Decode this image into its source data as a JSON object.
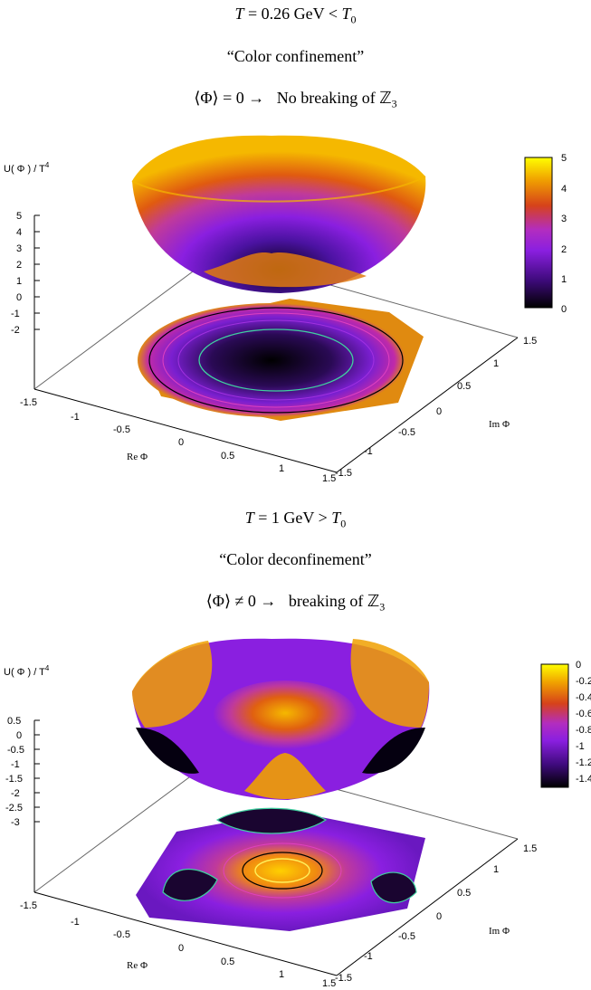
{
  "panels": [
    {
      "title": {
        "prefix": "T",
        "mid": " = 0.26 GeV < ",
        "suffix": "T",
        "sub": "0"
      },
      "subtitle": "“Color confinement”",
      "statement": {
        "lhs": "⟨Φ⟩ = 0  →",
        "rhs": "No breaking of  ℤ",
        "rhs_sub": "3"
      },
      "zlabel": "U( Φ ) / T",
      "zlabel_sup": "4",
      "xlabel": "Re Φ",
      "ylabel": "Im Φ",
      "colorbar": {
        "ticks": [
          "5",
          "4",
          "3",
          "2",
          "1",
          "0"
        ],
        "range": [
          0,
          5
        ]
      }
    },
    {
      "title": {
        "prefix": "T",
        "mid": " = 1 GeV  > ",
        "suffix": "T",
        "sub": "0"
      },
      "subtitle": "“Color deconfinement”",
      "statement": {
        "lhs": "⟨Φ⟩ ≠ 0 →",
        "rhs": "breaking of  ℤ",
        "rhs_sub": "3"
      },
      "zlabel": "U( Φ ) / T",
      "zlabel_sup": "4",
      "xlabel": "Re Φ",
      "ylabel": "Im Φ",
      "colorbar": {
        "ticks": [
          "0",
          "-0.2",
          "-0.4",
          "-0.6",
          "-0.8",
          "-1",
          "-1.2",
          "-1.4"
        ],
        "range": [
          -1.5,
          0
        ]
      }
    }
  ],
  "chart_data": [
    {
      "type": "surface",
      "title": "T = 0.26 GeV < T0",
      "xlabel": "Re Φ",
      "ylabel": "Im Φ",
      "zlabel": "U( Φ ) / T4",
      "x_ticks": [
        "-1.5",
        "-1",
        "-0.5",
        "0",
        "0.5",
        "1",
        "1.5"
      ],
      "y_ticks": [
        "-1.5",
        "-1",
        "-0.5",
        "0",
        "0.5",
        "1",
        "1.5"
      ],
      "z_ticks": [
        "5",
        "4",
        "3",
        "2",
        "1",
        "0",
        "-1",
        "-2"
      ],
      "xlim": [
        -1.5,
        1.5
      ],
      "ylim": [
        -1.5,
        1.5
      ],
      "zlim": [
        -2,
        5
      ],
      "colorbar_range": [
        0,
        5
      ],
      "shape": "single minimum at Phi = 0 (symmetric bowl)"
    },
    {
      "type": "surface",
      "title": "T = 1 GeV > T0",
      "xlabel": "Re Φ",
      "ylabel": "Im Φ",
      "zlabel": "U( Φ ) / T4",
      "x_ticks": [
        "-1.5",
        "-1",
        "-0.5",
        "0",
        "0.5",
        "1",
        "1.5"
      ],
      "y_ticks": [
        "-1.5",
        "-1",
        "-0.5",
        "0",
        "0.5",
        "1",
        "1.5"
      ],
      "z_ticks": [
        "0.5",
        "0",
        "-0.5",
        "-1",
        "-1.5",
        "-2",
        "-2.5",
        "-3"
      ],
      "xlim": [
        -1.5,
        1.5
      ],
      "ylim": [
        -1.5,
        1.5
      ],
      "zlim": [
        -3,
        0.5
      ],
      "colorbar_range": [
        -1.5,
        0
      ],
      "shape": "local maximum at Phi = 0, three Z3-symmetric minima"
    }
  ],
  "colors": {
    "palette": [
      "#000000",
      "#3d0a7a",
      "#8a1fe0",
      "#b32dbf",
      "#d6421a",
      "#f0a000",
      "#ffff00"
    ]
  }
}
